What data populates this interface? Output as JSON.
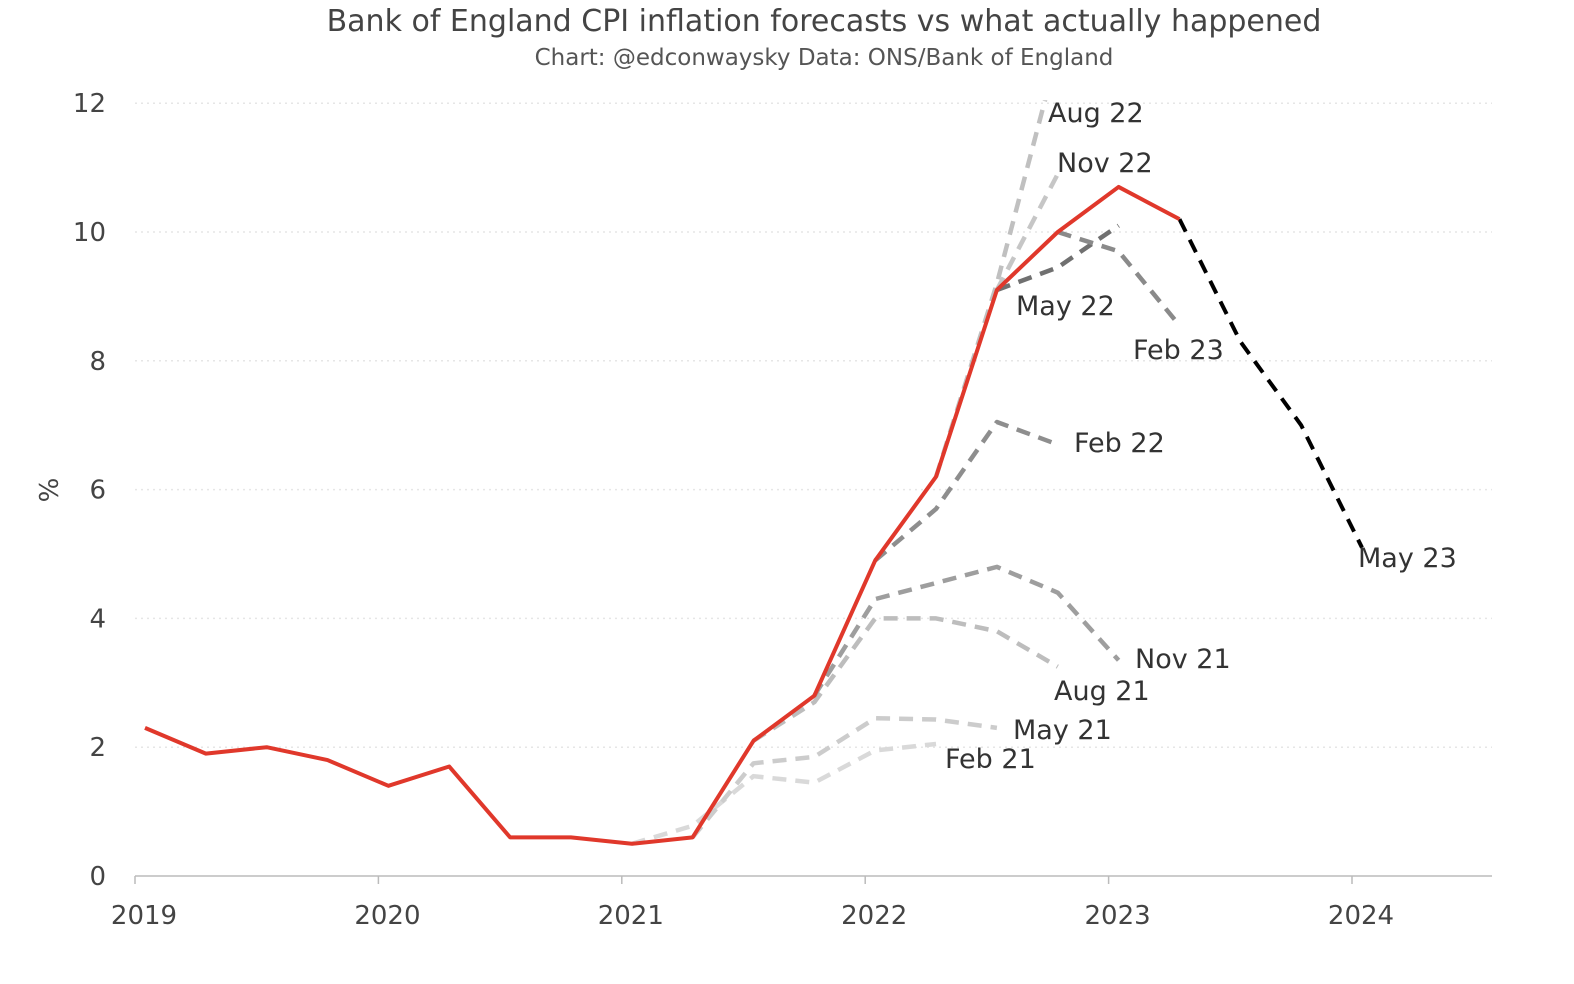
{
  "chart_data": {
    "type": "line",
    "title": "Bank of England CPI inflation forecasts vs what actually happened",
    "subtitle": "Chart: @edconwaysky Data: ONS/Bank of England",
    "xlabel": "",
    "ylabel": "%",
    "xlim": [
      2019,
      2024.6
    ],
    "ylim": [
      0,
      12
    ],
    "x_ticks": [
      "2019",
      "2020",
      "2021",
      "2022",
      "2023",
      "2024"
    ],
    "y_ticks": [
      "0",
      "2",
      "4",
      "6",
      "8",
      "10",
      "12"
    ],
    "grid": "horizontal dotted",
    "legend": "none (direct labels)",
    "actual": {
      "color": "#e0382b",
      "x": [
        2019.0,
        2019.25,
        2019.5,
        2019.75,
        2020.0,
        2020.25,
        2020.5,
        2020.75,
        2021.0,
        2021.25,
        2021.5,
        2021.75,
        2022.0,
        2022.25,
        2022.5,
        2022.75,
        2023.0,
        2023.25
      ],
      "y": [
        2.3,
        1.9,
        2.0,
        1.8,
        1.4,
        1.7,
        0.6,
        0.6,
        0.5,
        0.6,
        2.1,
        2.8,
        4.9,
        6.2,
        9.1,
        10.0,
        10.7,
        10.2
      ]
    },
    "series": [
      {
        "name": "Feb 21",
        "color": "#d9d9d9",
        "x": [
          2021.0,
          2021.25,
          2021.5,
          2021.75,
          2022.0,
          2022.25
        ],
        "y": [
          0.5,
          0.78,
          1.55,
          1.45,
          1.95,
          2.05
        ]
      },
      {
        "name": "May 21",
        "color": "#cccccc",
        "x": [
          2021.25,
          2021.5,
          2021.75,
          2022.0,
          2022.25,
          2022.5
        ],
        "y": [
          0.6,
          1.75,
          1.85,
          2.45,
          2.43,
          2.3
        ]
      },
      {
        "name": "Aug 21",
        "color": "#bdbdbd",
        "x": [
          2021.5,
          2021.75,
          2022.0,
          2022.25,
          2022.5,
          2022.75
        ],
        "y": [
          2.1,
          2.7,
          4.0,
          4.0,
          3.8,
          3.25
        ]
      },
      {
        "name": "Nov 21",
        "color": "#9e9e9e",
        "x": [
          2021.75,
          2022.0,
          2022.25,
          2022.5,
          2022.75,
          2023.0
        ],
        "y": [
          2.8,
          4.3,
          4.55,
          4.8,
          4.4,
          3.35
        ]
      },
      {
        "name": "Feb 22",
        "color": "#8e8e8e",
        "x": [
          2022.0,
          2022.25,
          2022.5,
          2022.75
        ],
        "y": [
          4.9,
          5.7,
          7.05,
          6.7
        ]
      },
      {
        "name": "May 22",
        "color": "#707070",
        "x": [
          2022.5,
          2022.75,
          2023.0
        ],
        "y": [
          9.1,
          9.45,
          10.1
        ]
      },
      {
        "name": "Aug 22",
        "color": "#c0c0c0",
        "x": [
          2022.25,
          2022.5,
          2022.75
        ],
        "y": [
          6.2,
          9.2,
          12.8
        ]
      },
      {
        "name": "Nov 22",
        "color": "#c6c6c6",
        "x": [
          2022.5,
          2022.75
        ],
        "y": [
          9.1,
          10.9
        ]
      },
      {
        "name": "Feb 23",
        "color": "#8a8a8a",
        "x": [
          2022.75,
          2023.0,
          2023.25
        ],
        "y": [
          10.0,
          9.7,
          8.55
        ]
      },
      {
        "name": "May 23",
        "color": "#000000",
        "x": [
          2023.25,
          2023.5,
          2023.75,
          2024.0
        ],
        "y": [
          10.2,
          8.3,
          7.0,
          5.1
        ]
      }
    ]
  }
}
